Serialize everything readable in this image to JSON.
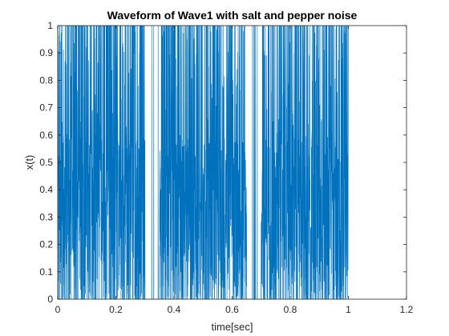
{
  "chart_data": {
    "type": "line",
    "title": "Waveform of Wave1 with salt and pepper noise",
    "xlabel": "time[sec]",
    "ylabel": "x(t)",
    "xlim": [
      0,
      1.2
    ],
    "ylim": [
      0,
      1
    ],
    "xticks": [
      0,
      0.2,
      0.4,
      0.6,
      0.8,
      1,
      1.2
    ],
    "xtick_labels": [
      "0",
      "0.2",
      "0.4",
      "0.6",
      "0.8",
      "1",
      "1.2"
    ],
    "yticks": [
      0,
      0.1,
      0.2,
      0.3,
      0.4,
      0.5,
      0.6,
      0.7,
      0.8,
      0.9,
      1
    ],
    "ytick_labels": [
      "0",
      "0.1",
      "0.2",
      "0.3",
      "0.4",
      "0.5",
      "0.6",
      "0.7",
      "0.8",
      "0.9",
      "1"
    ],
    "grid": false,
    "series": [
      {
        "color": "#0072bd",
        "x_range": [
          0,
          1
        ],
        "value_range": [
          0,
          1
        ],
        "silent_intervals": [
          [
            0.3,
            0.35
          ],
          [
            0.65,
            0.7
          ]
        ]
      }
    ]
  }
}
